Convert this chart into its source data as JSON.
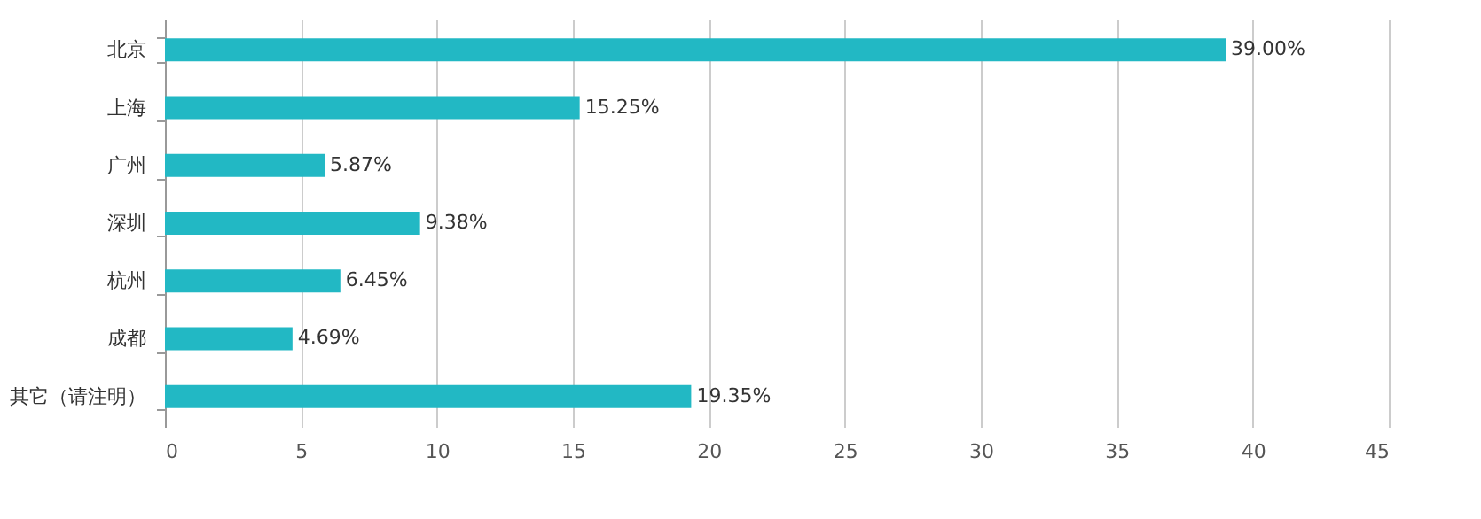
{
  "chart_data": {
    "type": "bar",
    "orientation": "horizontal",
    "categories": [
      "北京",
      "上海",
      "广州",
      "深圳",
      "杭州",
      "成都",
      "其它（请注明）"
    ],
    "values": [
      39.0,
      15.25,
      5.87,
      9.38,
      6.45,
      4.69,
      19.35
    ],
    "value_labels": [
      "39.00%",
      "15.25%",
      "5.87%",
      "9.38%",
      "6.45%",
      "4.69%",
      "19.35%"
    ],
    "color": "#22b8c4",
    "xlim": [
      0,
      45
    ],
    "xticks": [
      0,
      5,
      10,
      15,
      20,
      25,
      30,
      35,
      40,
      45
    ],
    "grid": "x"
  }
}
